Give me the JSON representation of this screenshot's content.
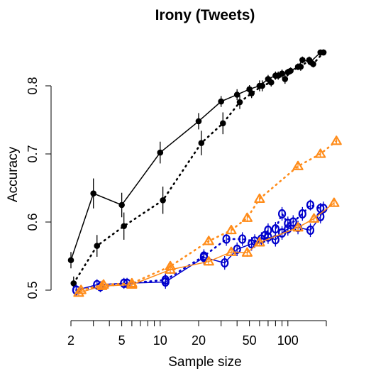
{
  "chart_data": {
    "type": "line",
    "title": "Irony (Tweets)",
    "xlabel": "Sample size",
    "ylabel": "Accuracy",
    "x_scale": "log",
    "xlim": [
      2,
      200
    ],
    "ylim": [
      0.5,
      0.85
    ],
    "x_ticks": [
      2,
      5,
      10,
      20,
      50,
      100
    ],
    "x_tick_labels": [
      "2",
      "5",
      "10",
      "20",
      "50",
      "100"
    ],
    "y_ticks": [
      0.5,
      0.6,
      0.7,
      0.8
    ],
    "y_tick_labels": [
      "0.5",
      "0.6",
      "0.7",
      "0.8"
    ],
    "grid": false,
    "series": [
      {
        "color": "#000000",
        "marker": "filled-circle",
        "line": "solid",
        "points": [
          {
            "x": 2,
            "y": 0.544,
            "err": 0.012
          },
          {
            "x": 3,
            "y": 0.642,
            "err": 0.022
          },
          {
            "x": 5,
            "y": 0.625,
            "err": 0.018
          },
          {
            "x": 10,
            "y": 0.702,
            "err": 0.016
          },
          {
            "x": 20,
            "y": 0.748,
            "err": 0.012
          },
          {
            "x": 30,
            "y": 0.777,
            "err": 0.008
          },
          {
            "x": 40,
            "y": 0.787,
            "err": 0.008
          },
          {
            "x": 50,
            "y": 0.795,
            "err": 0.006
          },
          {
            "x": 60,
            "y": 0.8,
            "err": 0.008
          },
          {
            "x": 70,
            "y": 0.81,
            "err": 0.006
          },
          {
            "x": 80,
            "y": 0.815,
            "err": 0.006
          },
          {
            "x": 90,
            "y": 0.818,
            "err": 0.006
          },
          {
            "x": 100,
            "y": 0.82,
            "err": 0.005
          },
          {
            "x": 120,
            "y": 0.828,
            "err": 0.005
          },
          {
            "x": 130,
            "y": 0.838,
            "err": 0.005
          },
          {
            "x": 150,
            "y": 0.835,
            "err": 0.005
          },
          {
            "x": 180,
            "y": 0.849,
            "err": 0.003
          },
          {
            "x": 190,
            "y": 0.849,
            "err": 0.003
          }
        ]
      },
      {
        "color": "#000000",
        "marker": "filled-circle",
        "line": "dotted",
        "points": [
          {
            "x": 2.1,
            "y": 0.51,
            "err": 0.01
          },
          {
            "x": 3.2,
            "y": 0.565,
            "err": 0.016
          },
          {
            "x": 5.2,
            "y": 0.594,
            "err": 0.02
          },
          {
            "x": 10.5,
            "y": 0.632,
            "err": 0.02
          },
          {
            "x": 21,
            "y": 0.716,
            "err": 0.018
          },
          {
            "x": 31,
            "y": 0.745,
            "err": 0.016
          },
          {
            "x": 42,
            "y": 0.776,
            "err": 0.01
          },
          {
            "x": 52,
            "y": 0.789,
            "err": 0.007
          },
          {
            "x": 63,
            "y": 0.8,
            "err": 0.008
          },
          {
            "x": 74,
            "y": 0.805,
            "err": 0.006
          },
          {
            "x": 84,
            "y": 0.815,
            "err": 0.006
          },
          {
            "x": 95,
            "y": 0.81,
            "err": 0.007
          },
          {
            "x": 105,
            "y": 0.822,
            "err": 0.005
          },
          {
            "x": 126,
            "y": 0.828,
            "err": 0.006
          },
          {
            "x": 147,
            "y": 0.838,
            "err": 0.005
          },
          {
            "x": 158,
            "y": 0.832,
            "err": 0.005
          },
          {
            "x": 190,
            "y": 0.849,
            "err": 0.003
          }
        ]
      },
      {
        "color": "#0000cc",
        "marker": "open-circle",
        "line": "dotted",
        "points": [
          {
            "x": 2.2,
            "y": 0.5,
            "err": 0.008
          },
          {
            "x": 3.4,
            "y": 0.505,
            "err": 0.008
          },
          {
            "x": 5.5,
            "y": 0.51,
            "err": 0.008
          },
          {
            "x": 11,
            "y": 0.515,
            "err": 0.01
          },
          {
            "x": 22,
            "y": 0.55,
            "err": 0.01
          },
          {
            "x": 33,
            "y": 0.575,
            "err": 0.01
          },
          {
            "x": 44,
            "y": 0.575,
            "err": 0.01
          },
          {
            "x": 55,
            "y": 0.572,
            "err": 0.01
          },
          {
            "x": 66,
            "y": 0.58,
            "err": 0.01
          },
          {
            "x": 70,
            "y": 0.588,
            "err": 0.01
          },
          {
            "x": 80,
            "y": 0.59,
            "err": 0.01
          },
          {
            "x": 90,
            "y": 0.612,
            "err": 0.01
          },
          {
            "x": 100,
            "y": 0.598,
            "err": 0.01
          },
          {
            "x": 110,
            "y": 0.6,
            "err": 0.01
          },
          {
            "x": 130,
            "y": 0.612,
            "err": 0.01
          },
          {
            "x": 150,
            "y": 0.625,
            "err": 0.008
          },
          {
            "x": 180,
            "y": 0.62,
            "err": 0.008
          }
        ]
      },
      {
        "color": "#0000cc",
        "marker": "open-circle-plus",
        "line": "solid",
        "points": [
          {
            "x": 2.2,
            "y": 0.5,
            "err": 0.008
          },
          {
            "x": 3.2,
            "y": 0.508,
            "err": 0.008
          },
          {
            "x": 5.2,
            "y": 0.51,
            "err": 0.008
          },
          {
            "x": 11,
            "y": 0.512,
            "err": 0.01
          },
          {
            "x": 22,
            "y": 0.548,
            "err": 0.01
          },
          {
            "x": 32,
            "y": 0.54,
            "err": 0.01
          },
          {
            "x": 40,
            "y": 0.56,
            "err": 0.01
          },
          {
            "x": 52,
            "y": 0.568,
            "err": 0.01
          },
          {
            "x": 62,
            "y": 0.575,
            "err": 0.01
          },
          {
            "x": 70,
            "y": 0.578,
            "err": 0.01
          },
          {
            "x": 80,
            "y": 0.574,
            "err": 0.01
          },
          {
            "x": 90,
            "y": 0.584,
            "err": 0.01
          },
          {
            "x": 100,
            "y": 0.59,
            "err": 0.01
          },
          {
            "x": 120,
            "y": 0.592,
            "err": 0.01
          },
          {
            "x": 150,
            "y": 0.588,
            "err": 0.01
          },
          {
            "x": 180,
            "y": 0.608,
            "err": 0.01
          },
          {
            "x": 190,
            "y": 0.62,
            "err": 0.01
          }
        ]
      },
      {
        "color": "#ff8c1a",
        "marker": "open-triangle",
        "line": "dotted",
        "points": [
          {
            "x": 2.4,
            "y": 0.5,
            "err": 0.004
          },
          {
            "x": 3.6,
            "y": 0.508,
            "err": 0.004
          },
          {
            "x": 6,
            "y": 0.51,
            "err": 0.004
          },
          {
            "x": 12,
            "y": 0.535,
            "err": 0.006
          },
          {
            "x": 24,
            "y": 0.572,
            "err": 0.006
          },
          {
            "x": 36,
            "y": 0.588,
            "err": 0.006
          },
          {
            "x": 48,
            "y": 0.606,
            "err": 0.006
          },
          {
            "x": 60,
            "y": 0.634,
            "err": 0.006
          },
          {
            "x": 120,
            "y": 0.682,
            "err": 0.005
          },
          {
            "x": 180,
            "y": 0.7,
            "err": 0.005
          },
          {
            "x": 240,
            "y": 0.719,
            "err": 0.004
          }
        ]
      },
      {
        "color": "#ff8c1a",
        "marker": "open-triangle-plus",
        "line": "solid",
        "points": [
          {
            "x": 2.3,
            "y": 0.496,
            "err": 0.004
          },
          {
            "x": 3.5,
            "y": 0.506,
            "err": 0.004
          },
          {
            "x": 6,
            "y": 0.508,
            "err": 0.004
          },
          {
            "x": 12,
            "y": 0.53,
            "err": 0.006
          },
          {
            "x": 24,
            "y": 0.542,
            "err": 0.006
          },
          {
            "x": 36,
            "y": 0.556,
            "err": 0.006
          },
          {
            "x": 48,
            "y": 0.555,
            "err": 0.006
          },
          {
            "x": 60,
            "y": 0.57,
            "err": 0.006
          },
          {
            "x": 120,
            "y": 0.592,
            "err": 0.006
          },
          {
            "x": 160,
            "y": 0.605,
            "err": 0.006
          },
          {
            "x": 230,
            "y": 0.628,
            "err": 0.005
          }
        ]
      }
    ]
  }
}
